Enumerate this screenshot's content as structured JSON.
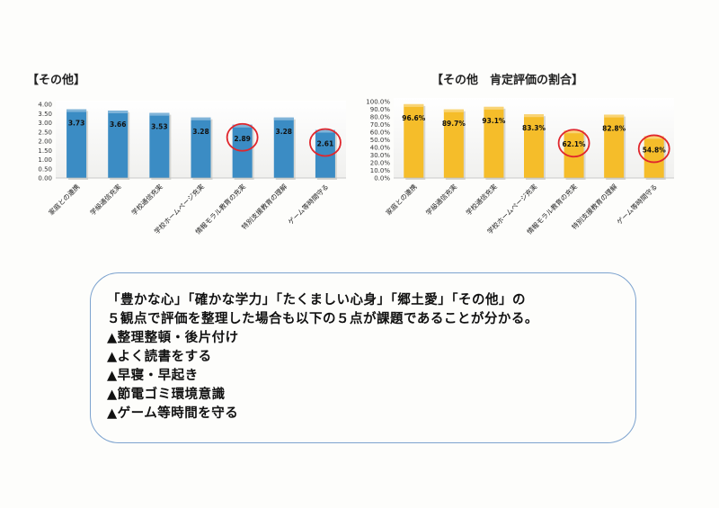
{
  "chart_data": [
    {
      "type": "bar",
      "title": "【その他】",
      "categories": [
        "家庭との連携",
        "学級通信充実",
        "学校通信充実",
        "学校ホームページ充実",
        "情報モラル教育の充実",
        "特別支援教育の理解",
        "ゲーム等時間守る"
      ],
      "values": [
        3.73,
        3.66,
        3.53,
        3.28,
        2.89,
        3.28,
        2.61
      ],
      "value_labels": [
        "3.73",
        "3.66",
        "3.53",
        "3.28",
        "2.89",
        "3.28",
        "2.61"
      ],
      "y_ticks": [
        "0.00",
        "0.50",
        "1.00",
        "1.50",
        "2.00",
        "2.50",
        "3.00",
        "3.50",
        "4.00"
      ],
      "ylim": [
        0,
        4
      ],
      "grid": false,
      "color": "#3b8cc4",
      "highlight_color": "#e0262c",
      "highlighted": [
        4,
        6
      ]
    },
    {
      "type": "bar",
      "title": "【その他　肯定評価の割合】",
      "categories": [
        "家庭との連携",
        "学級通信充実",
        "学校通信充実",
        "学校ホームページ充実",
        "情報モラル教育の充実",
        "特別支援教育の理解",
        "ゲーム等時間守る"
      ],
      "values": [
        96.6,
        89.7,
        93.1,
        83.3,
        62.1,
        82.8,
        54.8
      ],
      "value_labels": [
        "96.6%",
        "89.7%",
        "93.1%",
        "83.3%",
        "62.1%",
        "82.8%",
        "54.8%"
      ],
      "y_ticks": [
        "0.0%",
        "10.0%",
        "20.0%",
        "30.0%",
        "40.0%",
        "50.0%",
        "60.0%",
        "70.0%",
        "80.0%",
        "90.0%",
        "100.0%"
      ],
      "ylim": [
        0,
        100
      ],
      "grid": false,
      "color": "#f5bd2a",
      "highlight_color": "#e0262c",
      "highlighted": [
        4,
        6
      ]
    }
  ],
  "summary": {
    "lines": [
      "「豊かな心」「確かな学力」「たくましい心身」「郷土愛」「その他」の",
      "５観点で評価を整理した場合も以下の５点が課題であることが分かる。",
      "▲整理整頓・後片付け",
      "▲よく読書をする",
      "▲早寝・早起き",
      "▲節電ゴミ環境意識",
      "▲ゲーム等時間を守る"
    ],
    "border_color": "#7da3cf"
  }
}
